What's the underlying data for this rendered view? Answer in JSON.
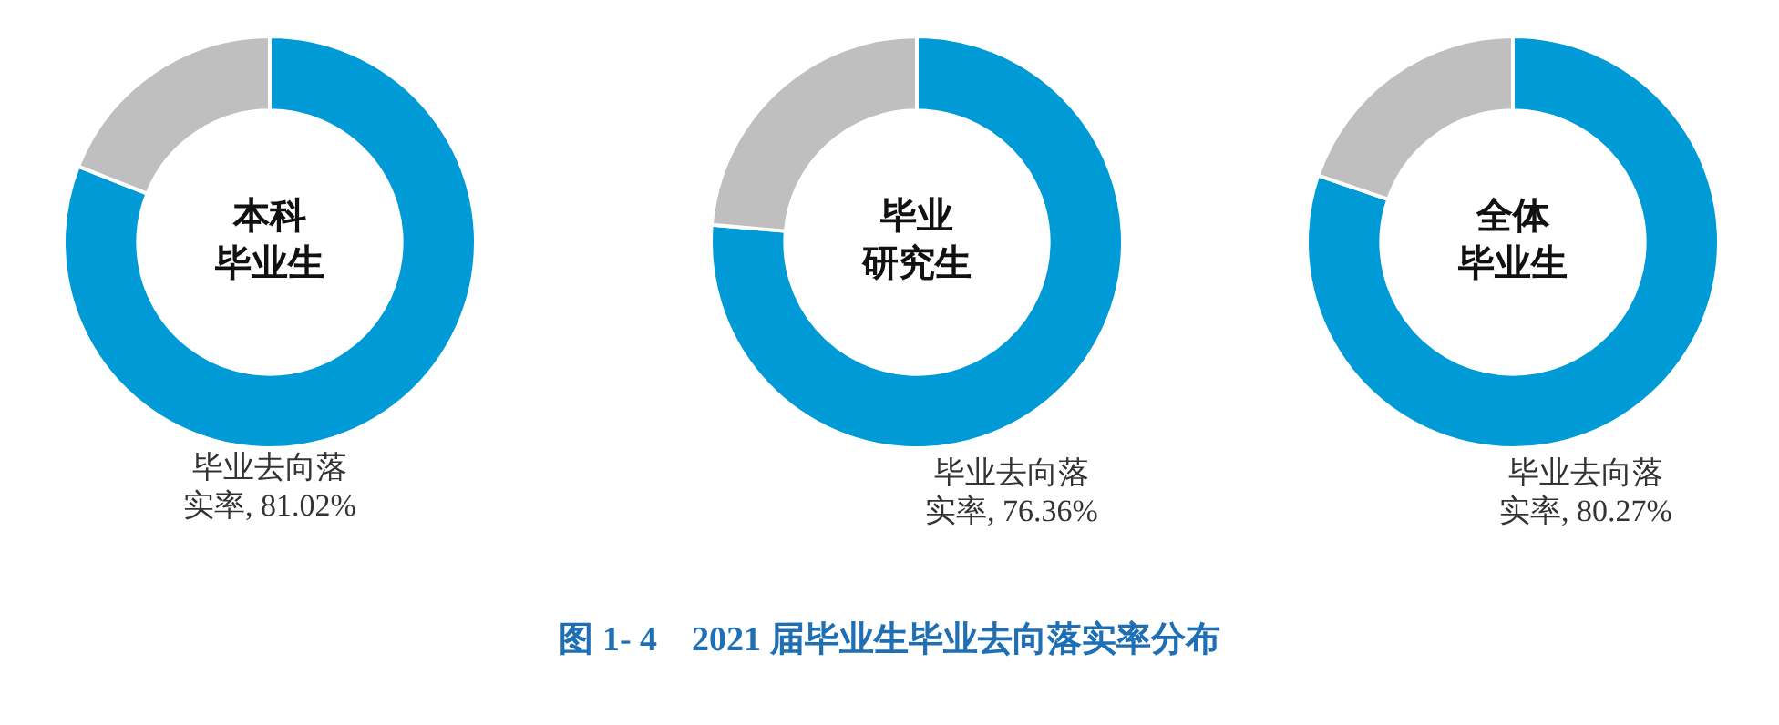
{
  "chart_data": [
    {
      "type": "donut",
      "title": "本科",
      "subtitle": "毕业生",
      "categories": [
        "毕业去向落实率",
        null
      ],
      "values": [
        81.02,
        18.98
      ],
      "colors": [
        "#009ad6",
        "#bfbfbf"
      ],
      "value_labels": [
        "81.02%",
        null
      ],
      "annotations": [
        "图 1- 4　2021 届毕业生毕业去向落实率分布"
      ]
    },
    {
      "type": "donut",
      "title": "毕业",
      "subtitle": "研究生",
      "categories": [
        "毕业去向落实率",
        null
      ],
      "values": [
        76.36,
        23.64
      ],
      "colors": [
        "#009ad6",
        "#bfbfbf"
      ],
      "value_labels": [
        "76.36%",
        null
      ]
    },
    {
      "type": "donut",
      "title": "全体",
      "subtitle": "毕业生",
      "categories": [
        "毕业去向落实率",
        null
      ],
      "values": [
        80.27,
        19.73
      ],
      "colors": [
        "#009ad6",
        "#bfbfbf"
      ],
      "value_labels": [
        "80.27%",
        null
      ]
    }
  ]
}
